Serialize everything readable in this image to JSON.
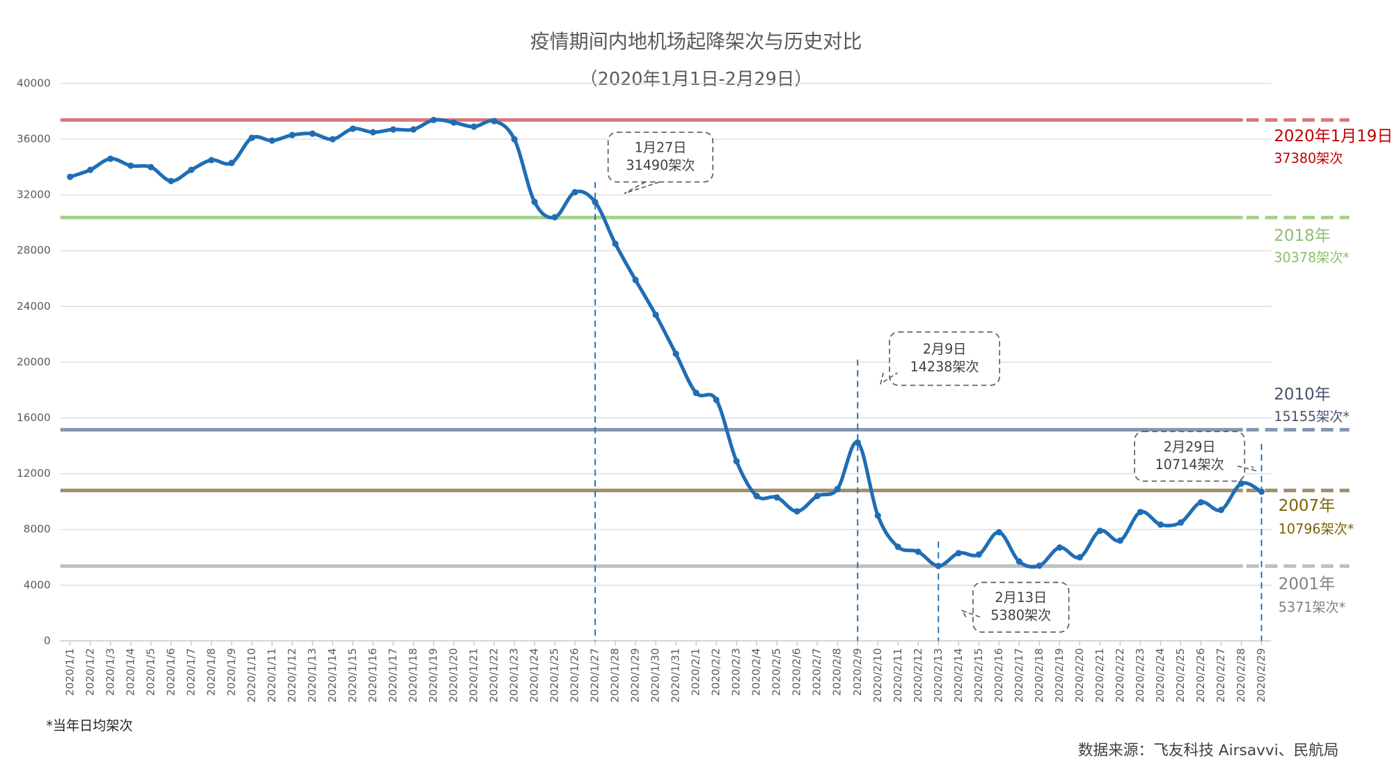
{
  "chart_data": {
    "type": "line",
    "title": "疫情期间内地机场起降架次与历史对比",
    "subtitle": "（2020年1月1日-2月29日）",
    "categories": [
      "2020/1/1",
      "2020/1/2",
      "2020/1/3",
      "2020/1/4",
      "2020/1/5",
      "2020/1/6",
      "2020/1/7",
      "2020/1/8",
      "2020/1/9",
      "2020/1/10",
      "2020/1/11",
      "2020/1/12",
      "2020/1/13",
      "2020/1/14",
      "2020/1/15",
      "2020/1/16",
      "2020/1/17",
      "2020/1/18",
      "2020/1/19",
      "2020/1/20",
      "2020/1/21",
      "2020/1/22",
      "2020/1/23",
      "2020/1/24",
      "2020/1/25",
      "2020/1/26",
      "2020/1/27",
      "2020/1/28",
      "2020/1/29",
      "2020/1/30",
      "2020/1/31",
      "2020/2/1",
      "2020/2/2",
      "2020/2/3",
      "2020/2/4",
      "2020/2/5",
      "2020/2/6",
      "2020/2/7",
      "2020/2/8",
      "2020/2/9",
      "2020/2/10",
      "2020/2/11",
      "2020/2/12",
      "2020/2/13",
      "2020/2/14",
      "2020/2/15",
      "2020/2/16",
      "2020/2/17",
      "2020/2/18",
      "2020/2/19",
      "2020/2/20",
      "2020/2/21",
      "2020/2/22",
      "2020/2/23",
      "2020/2/24",
      "2020/2/25",
      "2020/2/26",
      "2020/2/27",
      "2020/2/28",
      "2020/2/29"
    ],
    "series": [
      {
        "color": "#1f6db5",
        "values": [
          33300,
          33800,
          34600,
          34100,
          34000,
          33000,
          33800,
          34500,
          34300,
          36100,
          35900,
          36300,
          36400,
          36000,
          36750,
          36500,
          36700,
          36700,
          37380,
          37200,
          36900,
          37300,
          36000,
          31500,
          30400,
          32200,
          31490,
          28500,
          25900,
          23400,
          20600,
          17800,
          17300,
          12900,
          10400,
          10300,
          9300,
          10400,
          10900,
          14238,
          9000,
          6750,
          6400,
          5380,
          6300,
          6200,
          7800,
          5700,
          5400,
          6700,
          6000,
          7900,
          7200,
          9250,
          8350,
          8500,
          9950,
          9400,
          11300,
          10714
        ]
      }
    ],
    "ylim": [
      0,
      40000
    ],
    "yticks": [
      0,
      4000,
      8000,
      12000,
      16000,
      20000,
      24000,
      28000,
      32000,
      36000,
      40000
    ],
    "grid": true,
    "reference_lines": [
      {
        "name": "2020年1月19日",
        "value": 37380,
        "value_label": "37380架次",
        "color": "#d9777a",
        "text_color": "#c00000"
      },
      {
        "name": "2018年",
        "value": 30378,
        "value_label": "30378架次*",
        "color": "#a9d18e",
        "text_color": "#8cbf6e"
      },
      {
        "name": "2010年",
        "value": 15155,
        "value_label": "15155架次*",
        "color": "#8497b0",
        "text_color": "#44546a"
      },
      {
        "name": "2007年",
        "value": 10796,
        "value_label": "10796架次*",
        "color": "#a08e6b",
        "text_color": "#7f6000"
      },
      {
        "name": "2001年",
        "value": 5371,
        "value_label": "5371架次*",
        "color": "#bfbfbf",
        "text_color": "#7f7f7f"
      }
    ],
    "annotations": [
      {
        "date": "1月27日",
        "value": 31490,
        "label": "31490架次"
      },
      {
        "date": "2月9日",
        "value": 14238,
        "label": "14238架次"
      },
      {
        "date": "2月13日",
        "value": 5380,
        "label": "5380架次"
      },
      {
        "date": "2月29日",
        "value": 10714,
        "label": "10714架次"
      }
    ],
    "footnote": "*当年日均架次",
    "source": "数据来源：飞友科技 Airsavvi、民航局"
  }
}
